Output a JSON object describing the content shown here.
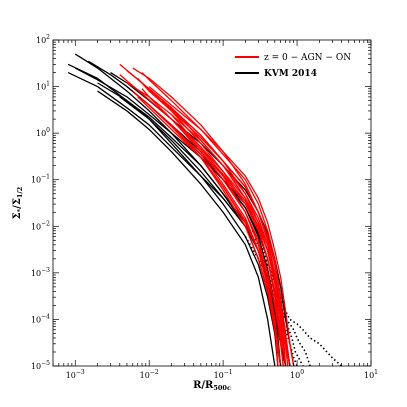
{
  "chart_data": {
    "type": "line",
    "title": "",
    "xlabel": "R/R",
    "xlabel_sub": "500c",
    "ylabel": "Σ",
    "ylabel_sub1": "*",
    "ylabel_mid": "/Σ",
    "ylabel_sub2": "1/2",
    "xscale": "log",
    "yscale": "log",
    "xlim": [
      0.0005,
      10
    ],
    "ylim": [
      1e-05,
      100
    ],
    "x_ticks": [
      {
        "v": 0.001,
        "base": "10",
        "exp": "−3"
      },
      {
        "v": 0.01,
        "base": "10",
        "exp": "−2"
      },
      {
        "v": 0.1,
        "base": "10",
        "exp": "−1"
      },
      {
        "v": 1,
        "base": "10",
        "exp": "0"
      },
      {
        "v": 10,
        "base": "10",
        "exp": "1"
      }
    ],
    "y_ticks": [
      {
        "v": 1e-05,
        "base": "10",
        "exp": "−5"
      },
      {
        "v": 0.0001,
        "base": "10",
        "exp": "−4"
      },
      {
        "v": 0.001,
        "base": "10",
        "exp": "−3"
      },
      {
        "v": 0.01,
        "base": "10",
        "exp": "−2"
      },
      {
        "v": 0.1,
        "base": "10",
        "exp": "−1"
      },
      {
        "v": 1,
        "base": "10",
        "exp": "0"
      },
      {
        "v": 10,
        "base": "10",
        "exp": "1"
      },
      {
        "v": 100,
        "base": "10",
        "exp": "2"
      }
    ],
    "grid": false,
    "legend_position": "top-right",
    "legend": [
      {
        "label": "z = 0 − AGN − ON",
        "color": "#ff0000"
      },
      {
        "label": "KVM 2014",
        "color": "#000000"
      }
    ],
    "series": [
      {
        "group": "AGN-ON",
        "color": "#ff0000",
        "style": "solid",
        "x": [
          0.004,
          0.008,
          0.02,
          0.05,
          0.1,
          0.2,
          0.3,
          0.4,
          0.5,
          0.6,
          0.7
        ],
        "y": [
          30,
          12,
          3,
          0.6,
          0.15,
          0.03,
          0.008,
          0.002,
          0.0004,
          6e-05,
          1e-05
        ]
      },
      {
        "group": "AGN-ON",
        "color": "#ff0000",
        "style": "solid",
        "x": [
          0.004,
          0.008,
          0.02,
          0.05,
          0.1,
          0.2,
          0.3,
          0.4,
          0.5,
          0.6,
          0.65
        ],
        "y": [
          18,
          7,
          2,
          0.4,
          0.1,
          0.02,
          0.005,
          0.001,
          0.0002,
          3e-05,
          1e-05
        ]
      },
      {
        "group": "AGN-ON",
        "color": "#ff0000",
        "style": "solid",
        "x": [
          0.005,
          0.01,
          0.02,
          0.05,
          0.1,
          0.2,
          0.3,
          0.4,
          0.5,
          0.6,
          0.8
        ],
        "y": [
          12,
          6,
          2.5,
          0.7,
          0.2,
          0.05,
          0.015,
          0.004,
          0.001,
          0.0002,
          1e-05
        ]
      },
      {
        "group": "AGN-ON",
        "color": "#ff0000",
        "style": "solid",
        "x": [
          0.005,
          0.01,
          0.02,
          0.05,
          0.1,
          0.2,
          0.3,
          0.4,
          0.5,
          0.6,
          0.75
        ],
        "y": [
          22,
          9,
          3.5,
          0.9,
          0.25,
          0.07,
          0.02,
          0.005,
          0.001,
          0.0002,
          1e-05
        ]
      },
      {
        "group": "AGN-ON",
        "color": "#ff0000",
        "style": "solid",
        "x": [
          0.006,
          0.01,
          0.02,
          0.05,
          0.1,
          0.2,
          0.3,
          0.4,
          0.5,
          0.55
        ],
        "y": [
          8,
          4,
          1.5,
          0.35,
          0.08,
          0.015,
          0.003,
          0.0006,
          8e-05,
          1e-05
        ]
      },
      {
        "group": "AGN-ON",
        "color": "#ff0000",
        "style": "solid",
        "x": [
          0.006,
          0.01,
          0.02,
          0.05,
          0.1,
          0.2,
          0.3,
          0.4,
          0.5,
          0.6,
          0.7
        ],
        "y": [
          25,
          15,
          6,
          1.5,
          0.4,
          0.08,
          0.02,
          0.005,
          0.001,
          0.0001,
          1e-05
        ]
      },
      {
        "group": "AGN-ON",
        "color": "#ff0000",
        "style": "solid",
        "x": [
          0.007,
          0.01,
          0.02,
          0.05,
          0.1,
          0.2,
          0.3,
          0.4,
          0.5,
          0.6
        ],
        "y": [
          6,
          3.5,
          1.2,
          0.3,
          0.07,
          0.012,
          0.003,
          0.0005,
          6e-05,
          1e-05
        ]
      },
      {
        "group": "AGN-ON",
        "color": "#ff0000",
        "style": "solid",
        "x": [
          0.007,
          0.01,
          0.02,
          0.05,
          0.1,
          0.2,
          0.3,
          0.4,
          0.5,
          0.6,
          0.7,
          0.8
        ],
        "y": [
          15,
          8,
          3,
          0.8,
          0.25,
          0.07,
          0.02,
          0.006,
          0.0015,
          0.0003,
          5e-05,
          1e-05
        ]
      },
      {
        "group": "AGN-ON",
        "color": "#ff0000",
        "style": "solid",
        "x": [
          0.008,
          0.01,
          0.02,
          0.05,
          0.1,
          0.2,
          0.3,
          0.4,
          0.5,
          0.6
        ],
        "y": [
          9,
          6,
          2,
          0.5,
          0.12,
          0.02,
          0.004,
          0.0008,
          0.0001,
          1e-05
        ]
      },
      {
        "group": "AGN-ON",
        "color": "#ff0000",
        "style": "solid",
        "x": [
          0.008,
          0.01,
          0.02,
          0.05,
          0.1,
          0.2,
          0.3,
          0.4,
          0.5,
          0.6,
          0.7
        ],
        "y": [
          20,
          14,
          5,
          1.2,
          0.35,
          0.1,
          0.03,
          0.008,
          0.002,
          0.0003,
          1e-05
        ]
      },
      {
        "group": "AGN-ON",
        "color": "#ff0000",
        "style": "solid",
        "x": [
          0.01,
          0.02,
          0.05,
          0.1,
          0.2,
          0.3,
          0.4,
          0.5,
          0.6
        ],
        "y": [
          4,
          1.4,
          0.3,
          0.06,
          0.01,
          0.002,
          0.0004,
          6e-05,
          1e-05
        ]
      },
      {
        "group": "AGN-ON",
        "color": "#ff0000",
        "style": "solid",
        "x": [
          0.01,
          0.02,
          0.05,
          0.1,
          0.2,
          0.3,
          0.4,
          0.5,
          0.6,
          0.7,
          0.8,
          0.9
        ],
        "y": [
          10,
          4,
          1.2,
          0.4,
          0.12,
          0.04,
          0.012,
          0.003,
          0.0008,
          0.00015,
          3e-05,
          1e-05
        ]
      },
      {
        "group": "AGN-ON",
        "color": "#ff0000",
        "style": "solid",
        "x": [
          0.012,
          0.02,
          0.05,
          0.1,
          0.2,
          0.3,
          0.4,
          0.5,
          0.6,
          0.7
        ],
        "y": [
          7,
          3.5,
          0.9,
          0.25,
          0.05,
          0.012,
          0.003,
          0.0006,
          0.0001,
          1e-05
        ]
      },
      {
        "group": "AGN-ON",
        "color": "#ff0000",
        "style": "solid",
        "x": [
          0.015,
          0.03,
          0.05,
          0.1,
          0.2,
          0.3,
          0.4,
          0.5,
          0.6,
          0.65
        ],
        "y": [
          5,
          1.8,
          0.7,
          0.2,
          0.04,
          0.009,
          0.002,
          0.0003,
          4e-05,
          1e-05
        ]
      },
      {
        "group": "AGN-ON",
        "color": "#ff0000",
        "style": "solid",
        "x": [
          0.02,
          0.03,
          0.05,
          0.1,
          0.2,
          0.3,
          0.4,
          0.5,
          0.6,
          0.7,
          0.8
        ],
        "y": [
          2.5,
          1.2,
          0.5,
          0.15,
          0.04,
          0.012,
          0.004,
          0.001,
          0.0002,
          4e-05,
          1e-05
        ]
      },
      {
        "group": "AGN-ON",
        "color": "#ff0000",
        "style": "solid",
        "x": [
          0.02,
          0.05,
          0.1,
          0.2,
          0.3,
          0.4,
          0.5,
          0.6
        ],
        "y": [
          1.5,
          0.3,
          0.07,
          0.013,
          0.003,
          0.0006,
          8e-05,
          1e-05
        ]
      },
      {
        "group": "AGN-ON",
        "color": "#ff0000",
        "style": "solid",
        "x": [
          0.03,
          0.05,
          0.1,
          0.2,
          0.3,
          0.4,
          0.5,
          0.6,
          0.7
        ],
        "y": [
          1.0,
          0.45,
          0.13,
          0.035,
          0.01,
          0.003,
          0.0007,
          0.0001,
          1e-05
        ]
      },
      {
        "group": "AGN-ON",
        "color": "#ff0000",
        "style": "solid",
        "x": [
          0.05,
          0.1,
          0.2,
          0.3,
          0.4,
          0.5,
          0.6,
          0.7,
          0.8
        ],
        "y": [
          0.4,
          0.12,
          0.03,
          0.01,
          0.003,
          0.0008,
          0.00015,
          3e-05,
          1e-05
        ]
      },
      {
        "group": "KVM",
        "color": "#000000",
        "style": "solid",
        "x": [
          0.0008,
          0.002,
          0.005,
          0.01,
          0.02,
          0.05,
          0.1,
          0.2,
          0.3,
          0.4,
          0.5,
          0.6
        ],
        "y": [
          30,
          15,
          5,
          2,
          0.6,
          0.12,
          0.03,
          0.006,
          0.0015,
          0.0003,
          5e-05,
          1e-05
        ]
      },
      {
        "group": "KVM",
        "color": "#000000",
        "style": "solid",
        "x": [
          0.0008,
          0.002,
          0.005,
          0.01,
          0.02,
          0.05,
          0.1,
          0.2,
          0.3,
          0.4,
          0.5,
          0.6,
          0.7
        ],
        "y": [
          20,
          10,
          3.5,
          1.5,
          0.5,
          0.12,
          0.04,
          0.01,
          0.003,
          0.0008,
          0.00015,
          3e-05,
          1e-05
        ]
      },
      {
        "group": "KVM",
        "color": "#000000",
        "style": "solid",
        "x": [
          0.001,
          0.002,
          0.005,
          0.01,
          0.02,
          0.05,
          0.1,
          0.2,
          0.3,
          0.4,
          0.5,
          0.55
        ],
        "y": [
          50,
          25,
          8,
          3,
          1,
          0.2,
          0.05,
          0.01,
          0.002,
          0.0004,
          5e-05,
          1e-05
        ]
      },
      {
        "group": "KVM",
        "color": "#000000",
        "style": "solid",
        "x": [
          0.001,
          0.002,
          0.005,
          0.01,
          0.02,
          0.05,
          0.1,
          0.2,
          0.3,
          0.4,
          0.5,
          0.6,
          0.7,
          0.8
        ],
        "y": [
          25,
          14,
          6,
          2.5,
          1,
          0.3,
          0.1,
          0.03,
          0.01,
          0.003,
          0.0008,
          0.00015,
          3e-05,
          1e-05
        ]
      },
      {
        "group": "KVM",
        "color": "#000000",
        "style": "solid",
        "x": [
          0.0015,
          0.003,
          0.005,
          0.01,
          0.02,
          0.05,
          0.1,
          0.2,
          0.3,
          0.4,
          0.5,
          0.6,
          0.7
        ],
        "y": [
          35,
          18,
          10,
          4,
          1.4,
          0.35,
          0.1,
          0.025,
          0.007,
          0.002,
          0.0004,
          6e-05,
          1e-05
        ]
      },
      {
        "group": "KVM",
        "color": "#000000",
        "style": "solid",
        "x": [
          0.002,
          0.005,
          0.01,
          0.02,
          0.05,
          0.1,
          0.2,
          0.3,
          0.4,
          0.5,
          0.6
        ],
        "y": [
          12,
          5,
          2.2,
          0.8,
          0.2,
          0.05,
          0.012,
          0.003,
          0.0006,
          0.0001,
          1e-05
        ]
      },
      {
        "group": "KVM",
        "color": "#000000",
        "style": "solid",
        "x": [
          0.002,
          0.005,
          0.01,
          0.02,
          0.05,
          0.1,
          0.2,
          0.3,
          0.4,
          0.5
        ],
        "y": [
          8,
          3,
          1.2,
          0.4,
          0.08,
          0.02,
          0.004,
          0.0008,
          0.0001,
          1e-05
        ]
      },
      {
        "group": "KVM",
        "color": "#000000",
        "style": "solid",
        "x": [
          0.003,
          0.005,
          0.01,
          0.02,
          0.05,
          0.1,
          0.2,
          0.3,
          0.4,
          0.5,
          0.6,
          0.7,
          0.8,
          0.9
        ],
        "y": [
          20,
          12,
          5,
          2,
          0.6,
          0.2,
          0.06,
          0.02,
          0.007,
          0.002,
          0.0005,
          0.0001,
          3e-05,
          1e-05
        ]
      },
      {
        "group": "KVM",
        "color": "#000000",
        "style": "solid",
        "x": [
          0.004,
          0.01,
          0.02,
          0.05,
          0.1,
          0.2,
          0.3,
          0.4,
          0.5,
          0.6,
          0.7
        ],
        "y": [
          6,
          2,
          0.7,
          0.15,
          0.04,
          0.01,
          0.003,
          0.0008,
          0.00015,
          3e-05,
          1e-05
        ]
      },
      {
        "group": "KVM",
        "color": "#000000",
        "style": "solid",
        "x": [
          0.005,
          0.01,
          0.02,
          0.05,
          0.1,
          0.2,
          0.3,
          0.4,
          0.5,
          0.6
        ],
        "y": [
          10,
          4,
          1.5,
          0.4,
          0.1,
          0.025,
          0.006,
          0.0012,
          0.0002,
          1e-05
        ]
      },
      {
        "group": "KVM",
        "color": "#000000",
        "style": "dotted",
        "x": [
          0.2,
          0.3,
          0.4,
          0.5,
          0.6,
          0.7,
          0.8,
          1.0,
          1.2,
          1.5,
          2,
          3,
          4
        ],
        "y": [
          0.01,
          0.004,
          0.0015,
          0.0007,
          0.0003,
          0.00015,
          0.0001,
          8e-05,
          6e-05,
          4e-05,
          3e-05,
          1.5e-05,
          1e-05
        ]
      },
      {
        "group": "KVM",
        "color": "#000000",
        "style": "dotted",
        "x": [
          0.2,
          0.3,
          0.4,
          0.5,
          0.6,
          0.7,
          0.8,
          0.9,
          1.0,
          1.1,
          1.3,
          1.5
        ],
        "y": [
          0.006,
          0.002,
          0.0008,
          0.0003,
          0.00015,
          0.0001,
          8e-05,
          6e-05,
          4e-05,
          3e-05,
          2e-05,
          1e-05
        ]
      },
      {
        "group": "KVM",
        "color": "#000000",
        "style": "dotted",
        "x": [
          0.25,
          0.35,
          0.45,
          0.55,
          0.65,
          0.75,
          0.85,
          0.95,
          1.05,
          1.2
        ],
        "y": [
          0.008,
          0.003,
          0.001,
          0.0004,
          0.00015,
          7e-05,
          4e-05,
          2e-05,
          1.5e-05,
          1e-05
        ]
      },
      {
        "group": "KVM",
        "color": "#000000",
        "style": "dotted",
        "x": [
          0.3,
          0.4,
          0.5,
          0.6,
          0.7,
          0.8,
          0.9,
          1.0
        ],
        "y": [
          0.003,
          0.001,
          0.0004,
          0.00015,
          6e-05,
          3e-05,
          1.5e-05,
          1e-05
        ]
      }
    ]
  }
}
